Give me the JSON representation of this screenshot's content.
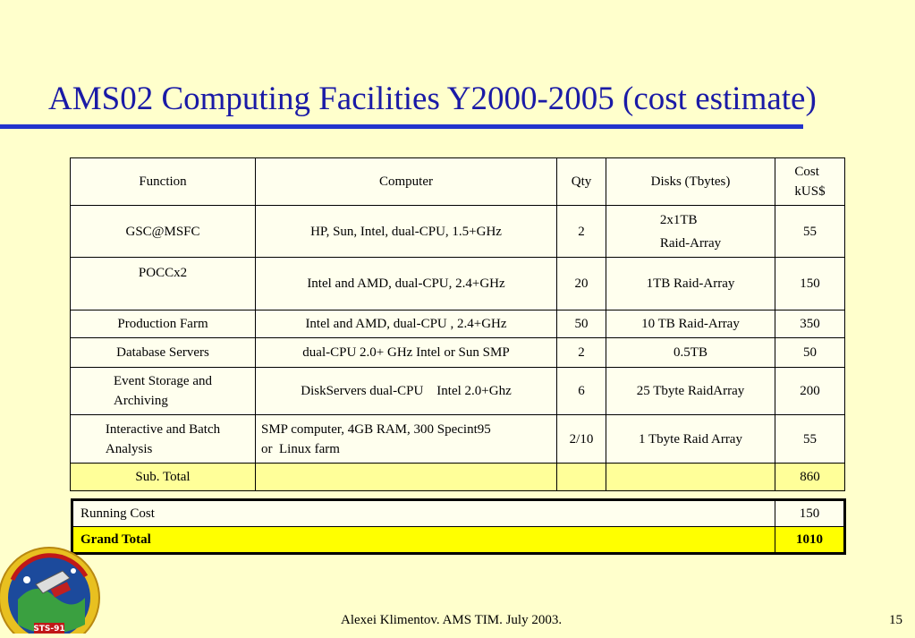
{
  "slide": {
    "title": "AMS02 Computing Facilities Y2000-2005  (cost estimate)",
    "footer": "Alexei Klimentov. AMS TIM. July 2003.",
    "page_number": "15"
  },
  "colors": {
    "background": "#ffffcc",
    "title": "#1a1aa6",
    "rule": "#2233cc",
    "grand_total_fill": "#ffff00"
  },
  "table": {
    "headers": {
      "function": "Function",
      "computer": "Computer",
      "qty": "Qty",
      "disks": "Disks (Tbytes)",
      "cost_line1": "Cost",
      "cost_line2": "kUS$"
    },
    "rows": [
      {
        "function": "GSC@MSFC",
        "computer": "HP, Sun, Intel, dual-CPU, 1.5+GHz",
        "qty": "2",
        "disks_line1": "2x1TB",
        "disks_line2": "Raid-Array",
        "cost": "55"
      },
      {
        "function": "POCCx2",
        "computer": "Intel and AMD,   dual-CPU,  2.4+GHz",
        "qty": "20",
        "disks": "1TB Raid-Array",
        "cost": "150"
      },
      {
        "function": "Production Farm",
        "computer": "Intel and AMD,   dual-CPU , 2.4+GHz",
        "qty": "50",
        "disks": "10 TB Raid-Array",
        "cost": "350"
      },
      {
        "function": "Database Servers",
        "computer": "dual-CPU 2.0+ GHz Intel or Sun SMP",
        "qty": "2",
        "disks": "0.5TB",
        "cost": "50"
      },
      {
        "function_line1": "Event Storage and",
        "function_line2": "Archiving",
        "computer": "DiskServers dual-CPU    Intel 2.0+Ghz",
        "qty": "6",
        "disks": "25 Tbyte RaidArray",
        "cost": "200"
      },
      {
        "function_line1": "Interactive and Batch",
        "function_line2": "Analysis",
        "computer_line1": "SMP computer, 4GB RAM, 300 Specint95",
        "computer_line2": "or  Linux farm",
        "qty": "2/10",
        "disks": "1 Tbyte Raid Array",
        "cost": "55"
      }
    ],
    "subtotal": {
      "label": "Sub. Total",
      "cost": "860"
    }
  },
  "summary": {
    "running_cost_label": "Running Cost",
    "running_cost_value": "150",
    "grand_total_label": "Grand Total",
    "grand_total_value": "1010"
  },
  "logo": {
    "icon": "ams-sts91-mission-patch-icon",
    "text": "STS-91"
  }
}
